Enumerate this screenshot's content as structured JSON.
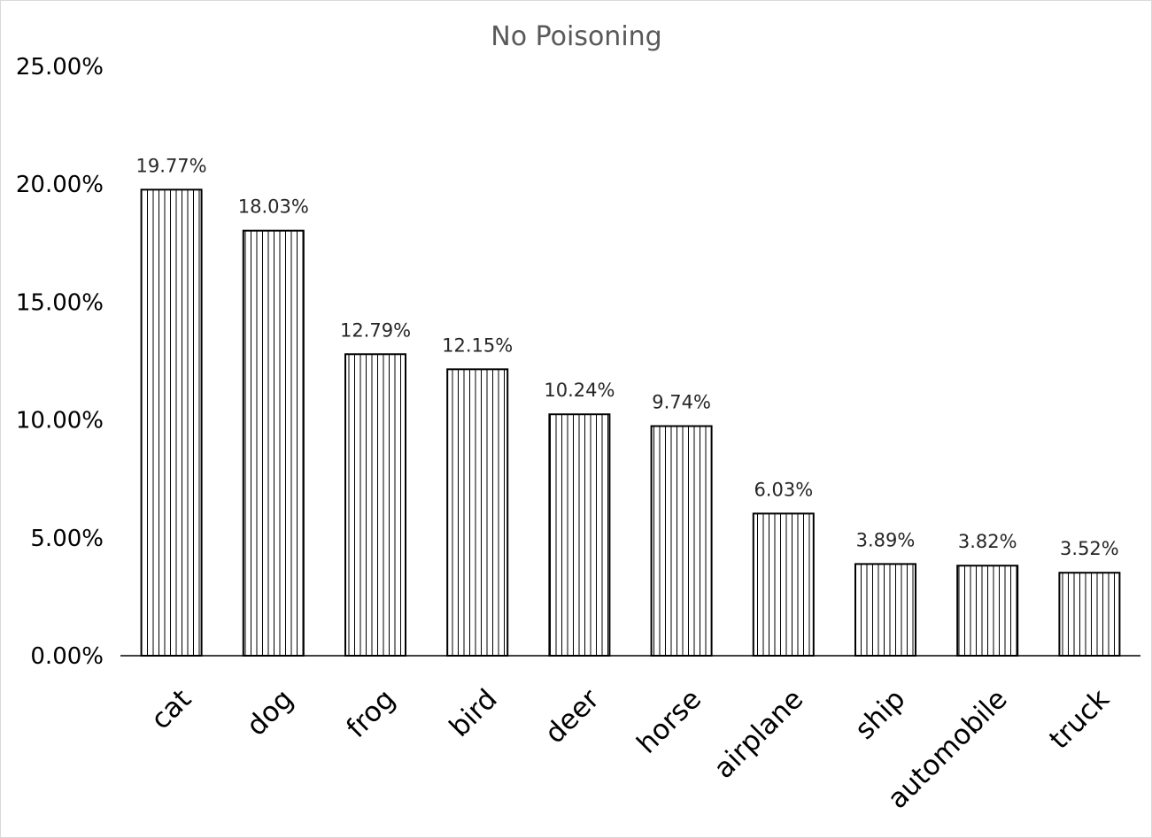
{
  "chart_data": {
    "type": "bar",
    "title": "No Poisoning",
    "xlabel": "",
    "ylabel": "",
    "categories": [
      "cat",
      "dog",
      "frog",
      "bird",
      "deer",
      "horse",
      "airplane",
      "ship",
      "automobile",
      "truck"
    ],
    "values": [
      19.77,
      18.03,
      12.79,
      12.15,
      10.24,
      9.74,
      6.03,
      3.89,
      3.82,
      3.52
    ],
    "data_labels": [
      "19.77%",
      "18.03%",
      "12.79%",
      "12.15%",
      "10.24%",
      "9.74%",
      "6.03%",
      "3.89%",
      "3.82%",
      "3.52%"
    ],
    "y_ticks": [
      0,
      5,
      10,
      15,
      20,
      25
    ],
    "y_tick_labels": [
      "0.00%",
      "5.00%",
      "10.00%",
      "15.00%",
      "20.00%",
      "25.00%"
    ],
    "ylim": [
      0,
      25
    ],
    "grid": false,
    "legend": "none",
    "bar_fill": "vertical-hatch",
    "colors": {
      "bar_stroke": "#000000",
      "hatch": "#000000",
      "title": "#595959",
      "axis": "#000000",
      "data_label": "#262626"
    }
  }
}
